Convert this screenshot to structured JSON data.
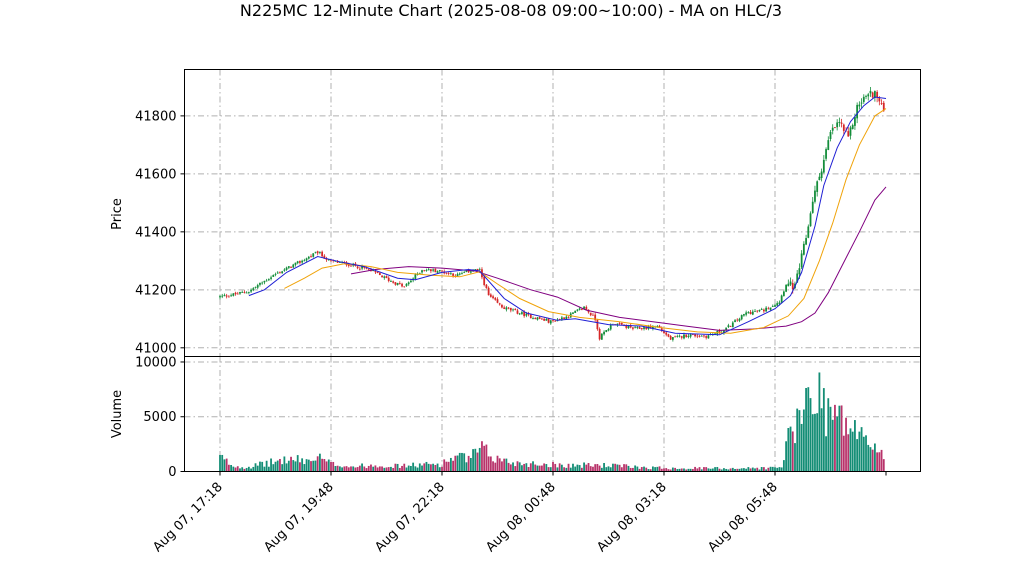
{
  "chart_data": {
    "type": "candlestick",
    "title": "N225MC 12-Minute Chart (2025-08-08 09:00~10:00) - MA on HLC/3",
    "price_panel": {
      "ylabel": "Price",
      "ylim": [
        40970,
        41960
      ],
      "yticks": [
        41000,
        41200,
        41400,
        41600,
        41800
      ]
    },
    "volume_panel": {
      "ylabel": "Volume",
      "ylim": [
        0,
        10500
      ],
      "yticks": [
        0,
        5000,
        10000
      ]
    },
    "xlabels": [
      {
        "label": "Aug 07, 17:18",
        "bar": 0
      },
      {
        "label": "Aug 07, 19:48",
        "bar": 50
      },
      {
        "label": "Aug 07, 22:18",
        "bar": 100
      },
      {
        "label": "Aug 08, 00:48",
        "bar": 150
      },
      {
        "label": "Aug 08, 03:18",
        "bar": 200
      },
      {
        "label": "Aug 08, 05:48",
        "bar": 250
      }
    ],
    "bar_count": 300,
    "grid": true,
    "colors": {
      "up": "#138d3a",
      "down": "#d62728",
      "vol_up": "#138d75",
      "vol_down": "#b8336a",
      "ma_short": "#1f1fd4",
      "ma_mid": "#f0a30a",
      "ma_long": "#800080"
    },
    "price_keypoints": [
      [
        0,
        41175
      ],
      [
        8,
        41185
      ],
      [
        14,
        41195
      ],
      [
        25,
        41250
      ],
      [
        38,
        41300
      ],
      [
        45,
        41330
      ],
      [
        50,
        41300
      ],
      [
        58,
        41290
      ],
      [
        68,
        41270
      ],
      [
        78,
        41230
      ],
      [
        84,
        41210
      ],
      [
        92,
        41270
      ],
      [
        100,
        41265
      ],
      [
        108,
        41250
      ],
      [
        115,
        41270
      ],
      [
        118,
        41265
      ],
      [
        122,
        41180
      ],
      [
        128,
        41140
      ],
      [
        140,
        41110
      ],
      [
        150,
        41090
      ],
      [
        158,
        41110
      ],
      [
        165,
        41140
      ],
      [
        170,
        41100
      ],
      [
        172,
        41035
      ],
      [
        178,
        41085
      ],
      [
        188,
        41065
      ],
      [
        193,
        41070
      ],
      [
        198,
        41075
      ],
      [
        204,
        41030
      ],
      [
        212,
        41045
      ],
      [
        220,
        41040
      ],
      [
        228,
        41060
      ],
      [
        233,
        41090
      ],
      [
        238,
        41120
      ],
      [
        246,
        41130
      ],
      [
        253,
        41160
      ],
      [
        256,
        41220
      ],
      [
        260,
        41210
      ],
      [
        265,
        41380
      ],
      [
        268,
        41510
      ],
      [
        272,
        41620
      ],
      [
        276,
        41740
      ],
      [
        280,
        41780
      ],
      [
        284,
        41720
      ],
      [
        288,
        41830
      ],
      [
        292,
        41870
      ],
      [
        296,
        41880
      ],
      [
        299,
        41830
      ]
    ],
    "volume_keypoints": [
      [
        0,
        1300
      ],
      [
        6,
        500
      ],
      [
        12,
        400
      ],
      [
        20,
        700
      ],
      [
        30,
        1100
      ],
      [
        40,
        1000
      ],
      [
        45,
        1200
      ],
      [
        50,
        700
      ],
      [
        60,
        450
      ],
      [
        70,
        600
      ],
      [
        80,
        500
      ],
      [
        90,
        600
      ],
      [
        100,
        700
      ],
      [
        105,
        1300
      ],
      [
        112,
        1200
      ],
      [
        118,
        2000
      ],
      [
        124,
        1200
      ],
      [
        132,
        800
      ],
      [
        142,
        700
      ],
      [
        150,
        650
      ],
      [
        160,
        550
      ],
      [
        168,
        600
      ],
      [
        175,
        550
      ],
      [
        185,
        450
      ],
      [
        195,
        350
      ],
      [
        210,
        300
      ],
      [
        225,
        300
      ],
      [
        240,
        300
      ],
      [
        253,
        350
      ],
      [
        255,
        2800
      ],
      [
        260,
        4000
      ],
      [
        264,
        6500
      ],
      [
        268,
        8000
      ],
      [
        272,
        6000
      ],
      [
        278,
        5000
      ],
      [
        284,
        4000
      ],
      [
        290,
        3000
      ],
      [
        296,
        2200
      ],
      [
        299,
        1500
      ]
    ],
    "ma_short_points": [
      [
        13,
        41180
      ],
      [
        20,
        41200
      ],
      [
        30,
        41260
      ],
      [
        44,
        41315
      ],
      [
        55,
        41295
      ],
      [
        65,
        41280
      ],
      [
        80,
        41240
      ],
      [
        88,
        41235
      ],
      [
        100,
        41260
      ],
      [
        112,
        41270
      ],
      [
        117,
        41265
      ],
      [
        128,
        41170
      ],
      [
        138,
        41120
      ],
      [
        152,
        41095
      ],
      [
        160,
        41100
      ],
      [
        175,
        41080
      ],
      [
        190,
        41075
      ],
      [
        205,
        41050
      ],
      [
        225,
        41045
      ],
      [
        238,
        41090
      ],
      [
        250,
        41135
      ],
      [
        257,
        41180
      ],
      [
        262,
        41260
      ],
      [
        268,
        41420
      ],
      [
        272,
        41560
      ],
      [
        278,
        41690
      ],
      [
        284,
        41780
      ],
      [
        290,
        41835
      ],
      [
        295,
        41865
      ],
      [
        300,
        41860
      ]
    ],
    "ma_mid_points": [
      [
        29,
        41205
      ],
      [
        38,
        41240
      ],
      [
        46,
        41275
      ],
      [
        56,
        41290
      ],
      [
        68,
        41280
      ],
      [
        80,
        41260
      ],
      [
        95,
        41250
      ],
      [
        108,
        41245
      ],
      [
        117,
        41262
      ],
      [
        125,
        41220
      ],
      [
        135,
        41170
      ],
      [
        148,
        41125
      ],
      [
        162,
        41105
      ],
      [
        180,
        41090
      ],
      [
        198,
        41070
      ],
      [
        215,
        41055
      ],
      [
        230,
        41050
      ],
      [
        245,
        41070
      ],
      [
        256,
        41110
      ],
      [
        263,
        41170
      ],
      [
        270,
        41300
      ],
      [
        276,
        41430
      ],
      [
        282,
        41580
      ],
      [
        288,
        41700
      ],
      [
        295,
        41800
      ],
      [
        300,
        41825
      ]
    ],
    "ma_long_points": [
      [
        59,
        41255
      ],
      [
        70,
        41270
      ],
      [
        85,
        41280
      ],
      [
        100,
        41275
      ],
      [
        115,
        41265
      ],
      [
        125,
        41240
      ],
      [
        140,
        41200
      ],
      [
        152,
        41175
      ],
      [
        165,
        41130
      ],
      [
        180,
        41105
      ],
      [
        195,
        41090
      ],
      [
        210,
        41075
      ],
      [
        225,
        41060
      ],
      [
        240,
        41065
      ],
      [
        255,
        41075
      ],
      [
        262,
        41090
      ],
      [
        268,
        41120
      ],
      [
        274,
        41190
      ],
      [
        280,
        41280
      ],
      [
        288,
        41400
      ],
      [
        295,
        41510
      ],
      [
        300,
        41555
      ]
    ]
  }
}
